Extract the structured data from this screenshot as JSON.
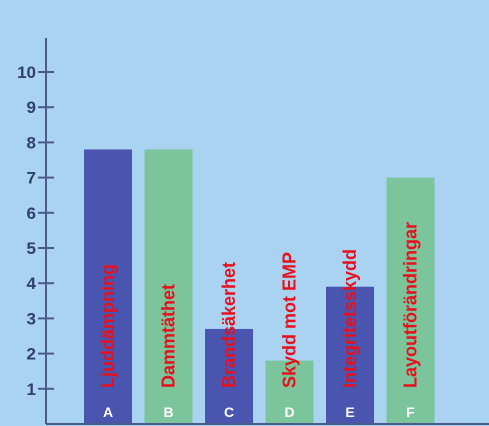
{
  "chart_data": {
    "type": "bar",
    "categories": [
      "A",
      "B",
      "C",
      "D",
      "E",
      "F"
    ],
    "values": [
      7.8,
      7.8,
      2.7,
      1.8,
      3.9,
      7.0
    ],
    "bar_labels": [
      "Ljuddämpning",
      "Dammtäthet",
      "Brandsäkerhet",
      "Skydd mot EMP",
      "Integritetsskydd",
      "Layoutförändringar"
    ],
    "bar_colors": [
      "#4a55b0",
      "#7cc49c",
      "#4a55b0",
      "#7cc49c",
      "#4a55b0",
      "#7cc49c"
    ],
    "label_color": "#e8101c",
    "yticks": [
      1,
      2,
      3,
      4,
      5,
      6,
      7,
      8,
      9,
      10
    ],
    "ylim": [
      0,
      11
    ],
    "grid": false,
    "title": "",
    "xlabel": "",
    "ylabel": ""
  },
  "colors": {
    "background": "#a9d3f0",
    "axis": "#4a5a8a",
    "tick_text": "#2f3f6e"
  }
}
